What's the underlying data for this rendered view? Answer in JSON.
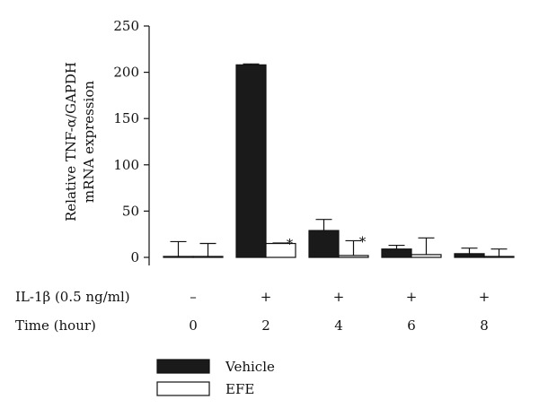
{
  "chart_data": {
    "type": "bar",
    "title": "",
    "ylabel_lines": [
      "Relative TNF-α/GAPDH",
      "mRNA expression"
    ],
    "ylim": [
      0,
      250
    ],
    "yticks": [
      0,
      50,
      100,
      150,
      200,
      250
    ],
    "categories": [
      "0",
      "2",
      "4",
      "6",
      "8"
    ],
    "series": [
      {
        "name": "Vehicle",
        "color": "#1a1a1a",
        "values": [
          1,
          208,
          29,
          9,
          4
        ],
        "errors": [
          16,
          1,
          12,
          4,
          6
        ]
      },
      {
        "name": "EFE",
        "color": "#ffffff",
        "values": [
          1,
          15,
          2,
          3,
          1
        ],
        "errors": [
          14,
          0.5,
          16,
          18,
          8
        ]
      }
    ],
    "significance": [
      {
        "category_index": 1,
        "series_index": 1,
        "label": "*"
      },
      {
        "category_index": 2,
        "series_index": 1,
        "label": "*"
      }
    ],
    "conditions": [
      {
        "label": "IL-1β (0.5 ng/ml)",
        "values": [
          "–",
          "+",
          "+",
          "+",
          "+"
        ]
      },
      {
        "label": "Time (hour)",
        "values": [
          "0",
          "2",
          "4",
          "6",
          "8"
        ]
      }
    ],
    "legend": {
      "position": "bottom-left",
      "entries": [
        "Vehicle",
        "EFE"
      ]
    }
  }
}
